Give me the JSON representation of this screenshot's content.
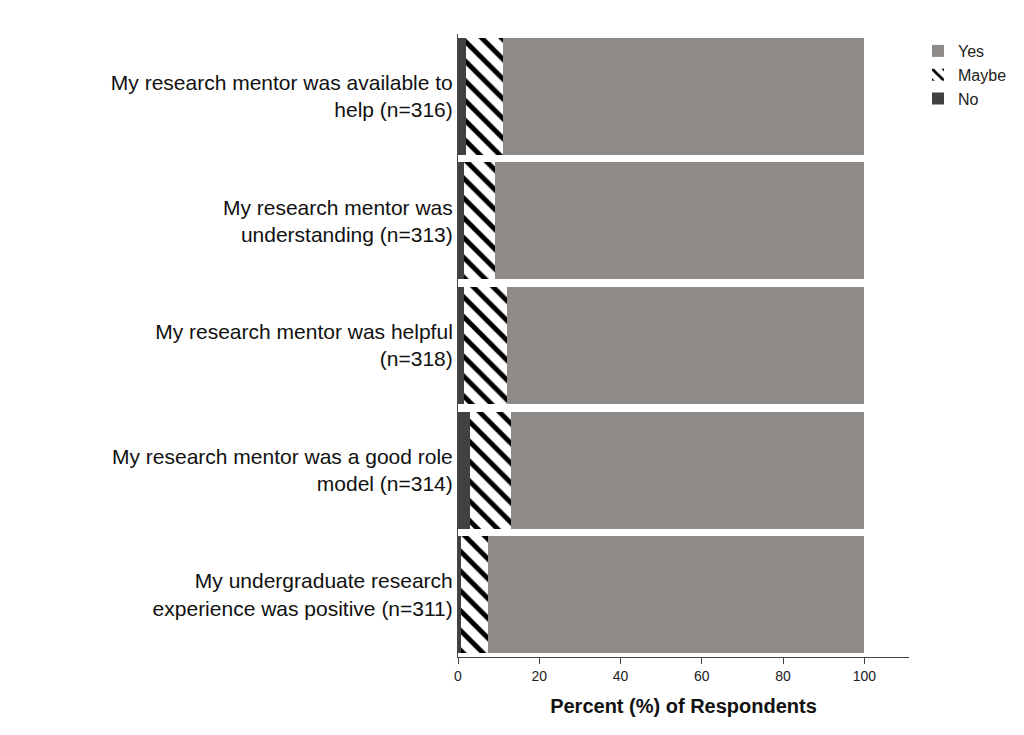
{
  "chart_data": {
    "type": "bar",
    "orientation": "horizontal",
    "stacked": true,
    "categories": [
      "My research mentor was available to help (n=316)",
      "My research mentor was understanding (n=313)",
      "My research mentor was helpful (n=318)",
      "My research mentor was a good role model (n=314)",
      "My undergraduate research experience was positive (n=311)"
    ],
    "series": [
      {
        "name": "No",
        "color": "#3f4241",
        "values": [
          2,
          1.5,
          1.5,
          3,
          0.7
        ]
      },
      {
        "name": "Maybe",
        "color": "#ffffff",
        "marker": "hatched",
        "values": [
          9,
          7.5,
          10.5,
          10,
          6.6
        ]
      },
      {
        "name": "Yes",
        "color": "#8f8b88",
        "values": [
          89,
          91,
          88,
          87,
          92.7
        ]
      }
    ],
    "x_label": "Percent (%) of Respondents",
    "xlim": [
      0,
      111
    ],
    "xticks": [
      0,
      20,
      40,
      60,
      80,
      100
    ],
    "grid": false,
    "legend": "top right"
  }
}
